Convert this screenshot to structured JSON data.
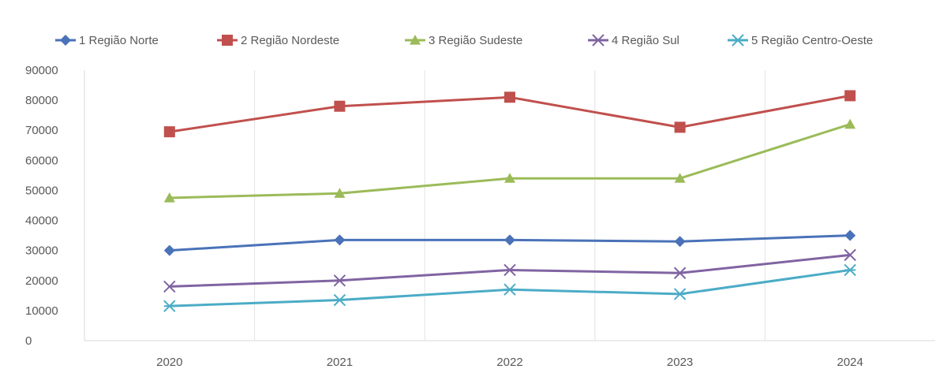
{
  "chart_data": {
    "type": "line",
    "categories": [
      "2020",
      "2021",
      "2022",
      "2023",
      "2024"
    ],
    "ylim": [
      0,
      90000
    ],
    "yticks": [
      0,
      10000,
      20000,
      30000,
      40000,
      50000,
      60000,
      70000,
      80000,
      90000
    ],
    "ytick_labels": [
      "0",
      "10000",
      "20000",
      "30000",
      "40000",
      "50000",
      "60000",
      "70000",
      "80000",
      "90000"
    ],
    "grid": "vertical",
    "legend_position": "top",
    "series": [
      {
        "name": "1 Região Norte",
        "color": "#4a72b8",
        "marker": "diamond",
        "values": [
          30000,
          33500,
          33500,
          33000,
          35000
        ]
      },
      {
        "name": "2 Região Nordeste",
        "color": "#c0504d",
        "marker": "square",
        "values": [
          69500,
          78000,
          81000,
          71000,
          81500
        ]
      },
      {
        "name": "3 Região Sudeste",
        "color": "#9bbb59",
        "marker": "triangle",
        "values": [
          47500,
          49000,
          54000,
          54000,
          72000
        ]
      },
      {
        "name": "4 Região Sul",
        "color": "#8064a2",
        "marker": "x",
        "values": [
          18000,
          20000,
          23500,
          22500,
          28500
        ]
      },
      {
        "name": "5 Região Centro-Oeste",
        "color": "#4bacc6",
        "marker": "star",
        "values": [
          11500,
          13500,
          17000,
          15500,
          23500
        ]
      }
    ]
  }
}
